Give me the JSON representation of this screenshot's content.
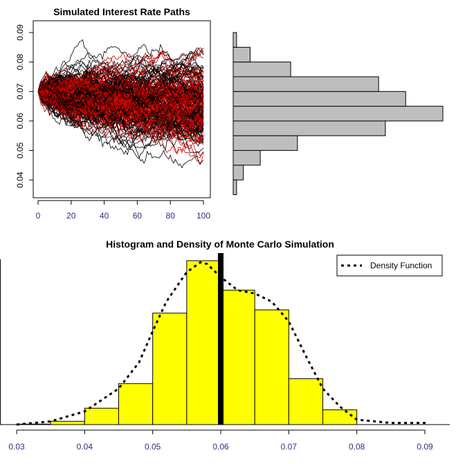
{
  "chart_data": [
    {
      "type": "line",
      "title": "Simulated Interest Rate Paths",
      "xlabel": "",
      "ylabel": "",
      "xlim": [
        0,
        100
      ],
      "ylim": [
        0.033,
        0.094
      ],
      "x_ticks": [
        "0",
        "20",
        "40",
        "60",
        "80",
        "100"
      ],
      "y_ticks": [
        "0.04",
        "0.05",
        "0.06",
        "0.07",
        "0.08",
        "0.09"
      ],
      "start_value": 0.07,
      "series_colors": [
        "#000000",
        "#cc0000"
      ],
      "grid": false
    },
    {
      "type": "bar",
      "orientation": "horizontal",
      "title": "",
      "bin_edges": [
        0.035,
        0.04,
        0.045,
        0.05,
        0.055,
        0.06,
        0.065,
        0.07,
        0.075,
        0.08,
        0.085,
        0.09
      ],
      "counts": [
        1,
        3,
        8,
        19,
        45,
        62,
        51,
        43,
        17,
        5,
        1
      ],
      "xlim": [
        0,
        62
      ],
      "bar_color": "#bebebe"
    },
    {
      "type": "bar",
      "title": "Histogram and Density of Monte Carlo Simulation",
      "xlabel": "",
      "ylabel": "",
      "bin_edges": [
        0.03,
        0.035,
        0.04,
        0.045,
        0.05,
        0.055,
        0.06,
        0.065,
        0.07,
        0.075,
        0.08,
        0.085,
        0.09
      ],
      "counts": [
        0.3,
        2,
        10,
        25,
        68,
        100,
        82,
        70,
        28,
        9,
        0,
        0
      ],
      "x_ticks": [
        "0.03",
        "0.04",
        "0.05",
        "0.06",
        "0.07",
        "0.08",
        "0.09"
      ],
      "xlim": [
        0.03,
        0.09
      ],
      "bar_color": "#ffff00",
      "mean_line_x": 0.06,
      "density": {
        "name": "Density Function",
        "x": [
          0.03,
          0.035,
          0.04,
          0.045,
          0.048,
          0.05,
          0.052,
          0.055,
          0.057,
          0.058,
          0.06,
          0.0625,
          0.065,
          0.0675,
          0.07,
          0.0725,
          0.075,
          0.0775,
          0.08,
          0.085,
          0.09,
          0.0905
        ],
        "y": [
          0.0,
          2,
          8,
          22,
          38,
          57,
          75,
          93,
          99,
          98,
          90,
          82,
          80,
          75,
          63,
          42,
          22,
          11,
          3,
          1,
          1,
          0
        ]
      },
      "legend_position": "top-right"
    }
  ]
}
